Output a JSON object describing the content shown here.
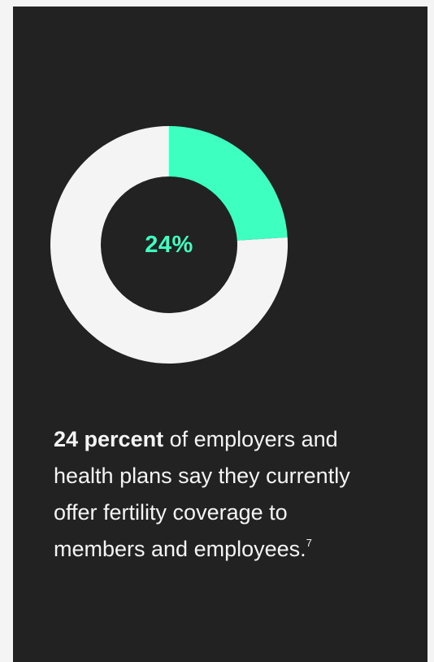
{
  "chart_data": {
    "type": "pie",
    "center_label": "24%",
    "slices": [
      {
        "label": "",
        "value": 24,
        "color": "#3cffc0"
      },
      {
        "label": "",
        "value": 76,
        "color": "#f4f4f4"
      }
    ]
  },
  "caption": {
    "bold": "24 percent",
    "text": " of employers and health plans say they currently offer fertility coverage to members and employees.",
    "footnote": "7"
  },
  "colors": {
    "background": "#222222",
    "accent": "#3cffc0",
    "light": "#f4f4f4"
  }
}
